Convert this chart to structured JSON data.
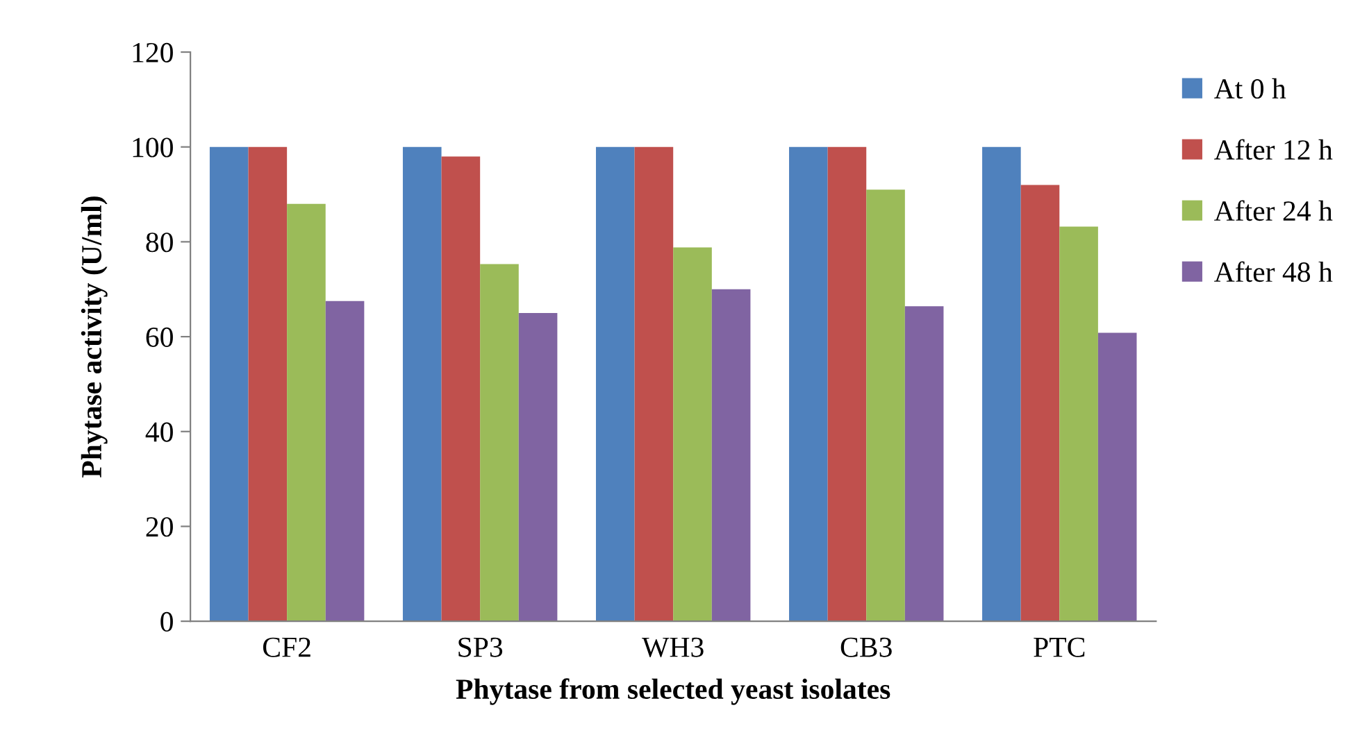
{
  "chart_data": {
    "type": "bar",
    "xlabel": "Phytase from selected yeast isolates",
    "ylabel": "Phytase activity (U/ml)",
    "categories": [
      "CF2",
      "SP3",
      "WH3",
      "CB3",
      "PTC"
    ],
    "series": [
      {
        "name": "At 0 h",
        "color": "#4f81bd",
        "values": [
          100,
          100,
          100,
          100,
          100
        ]
      },
      {
        "name": "After 12 h",
        "color": "#c0504d",
        "values": [
          100,
          98,
          100,
          100,
          92
        ]
      },
      {
        "name": "After 24 h",
        "color": "#9bbb59",
        "values": [
          88,
          75.3,
          78.8,
          91,
          83.2
        ]
      },
      {
        "name": "After 48 h",
        "color": "#8064a2",
        "values": [
          67.5,
          65,
          70,
          66.4,
          60.8
        ]
      }
    ],
    "ylim": [
      0,
      120
    ],
    "yticks": [
      0,
      20,
      40,
      60,
      80,
      100,
      120
    ],
    "grid": false,
    "legend": "top right"
  }
}
